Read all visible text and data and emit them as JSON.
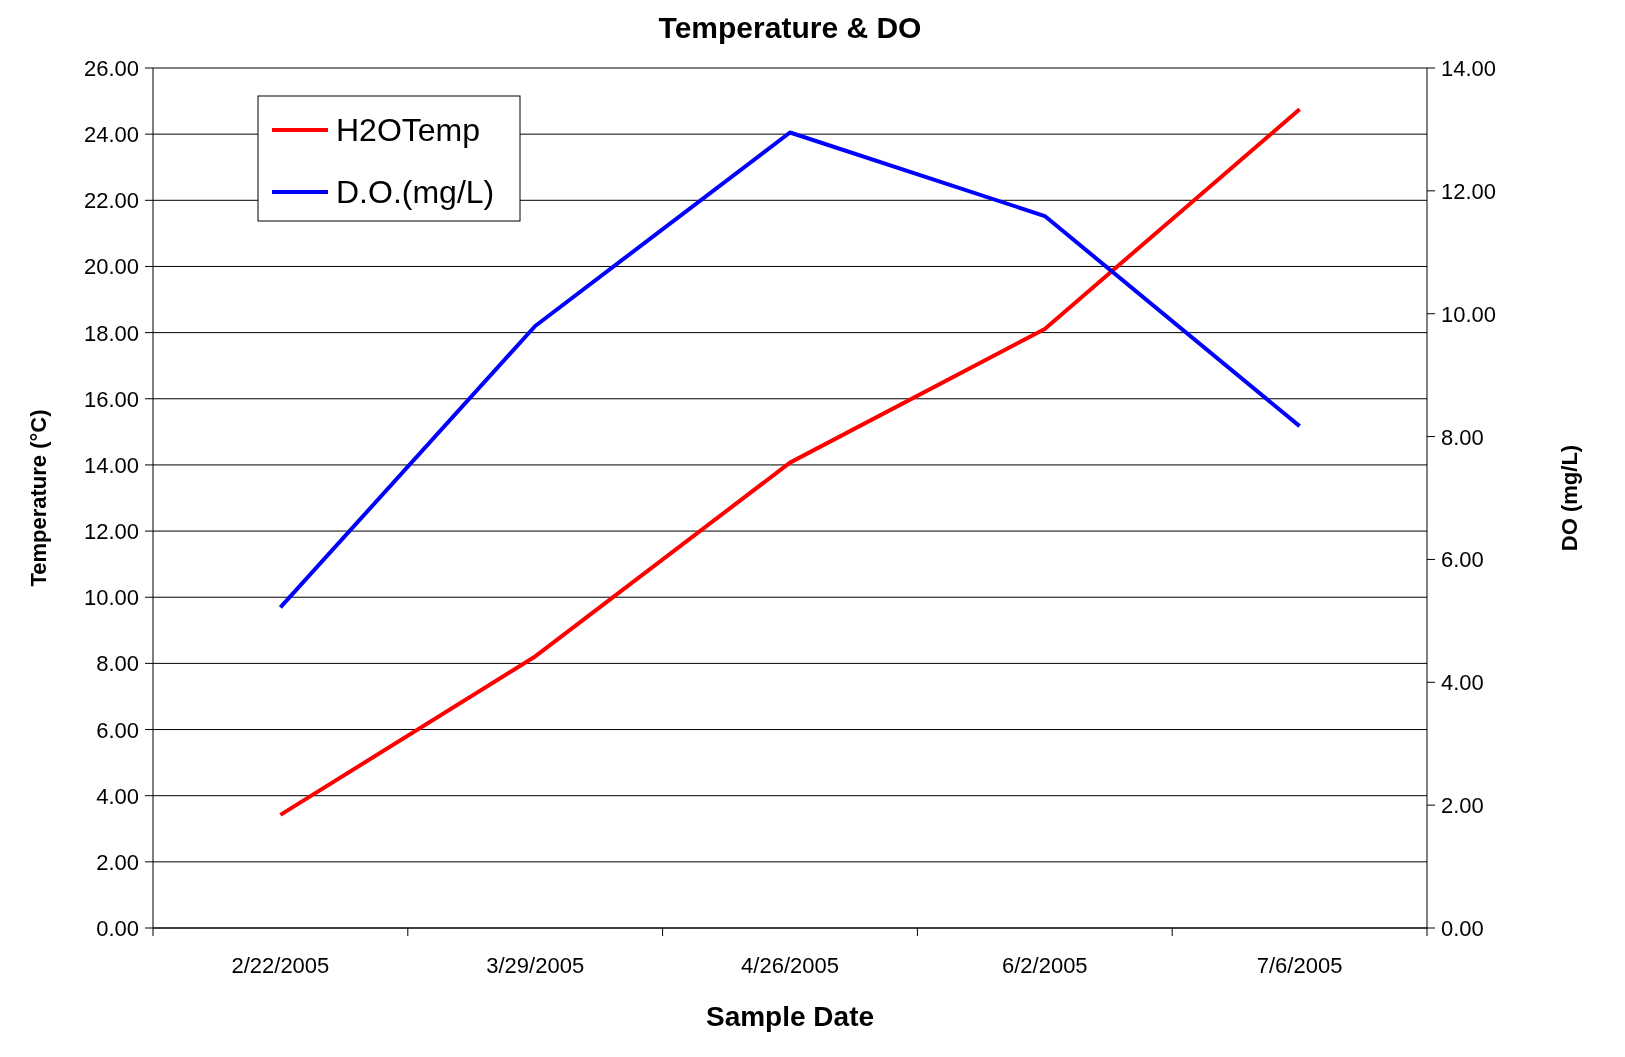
{
  "chart_data": {
    "type": "line",
    "title": "Temperature & DO",
    "xlabel": "Sample Date",
    "ylabel": "Temperature (°C)",
    "y2label": "DO (mg/L)",
    "categories": [
      "2/22/2005",
      "3/29/2005",
      "4/26/2005",
      "6/2/2005",
      "7/6/2005"
    ],
    "series": [
      {
        "name": "H2OTemp",
        "color": "#ff0000",
        "values": [
          3.42,
          8.21,
          14.07,
          18.11,
          24.75
        ]
      },
      {
        "name": "D.O.(mg/L)",
        "color": "#0000ff",
        "values": [
          5.22,
          9.8,
          12.95,
          11.59,
          8.17
        ],
        "axis": "y2"
      }
    ],
    "ylim": [
      0,
      26
    ],
    "yticks": [
      {
        "value": 0,
        "label": "0.00"
      },
      {
        "value": 2,
        "label": "2.00"
      },
      {
        "value": 4,
        "label": "4.00"
      },
      {
        "value": 6,
        "label": "6.00"
      },
      {
        "value": 8,
        "label": "8.00"
      },
      {
        "value": 10,
        "label": "10.00"
      },
      {
        "value": 12,
        "label": "12.00"
      },
      {
        "value": 14,
        "label": "14.00"
      },
      {
        "value": 16,
        "label": "16.00"
      },
      {
        "value": 18,
        "label": "18.00"
      },
      {
        "value": 20,
        "label": "20.00"
      },
      {
        "value": 22,
        "label": "22.00"
      },
      {
        "value": 24,
        "label": "24.00"
      },
      {
        "value": 26,
        "label": "26.00"
      }
    ],
    "y2lim": [
      0,
      14
    ],
    "y2ticks": [
      {
        "value": 0,
        "label": "0.00"
      },
      {
        "value": 2,
        "label": "2.00"
      },
      {
        "value": 4,
        "label": "4.00"
      },
      {
        "value": 6,
        "label": "6.00"
      },
      {
        "value": 8,
        "label": "8.00"
      },
      {
        "value": 10,
        "label": "10.00"
      },
      {
        "value": 12,
        "label": "12.00"
      },
      {
        "value": 14,
        "label": "14.00"
      }
    ],
    "grid": "y",
    "legend": "top left",
    "marker": "none",
    "line_style": "solid"
  }
}
